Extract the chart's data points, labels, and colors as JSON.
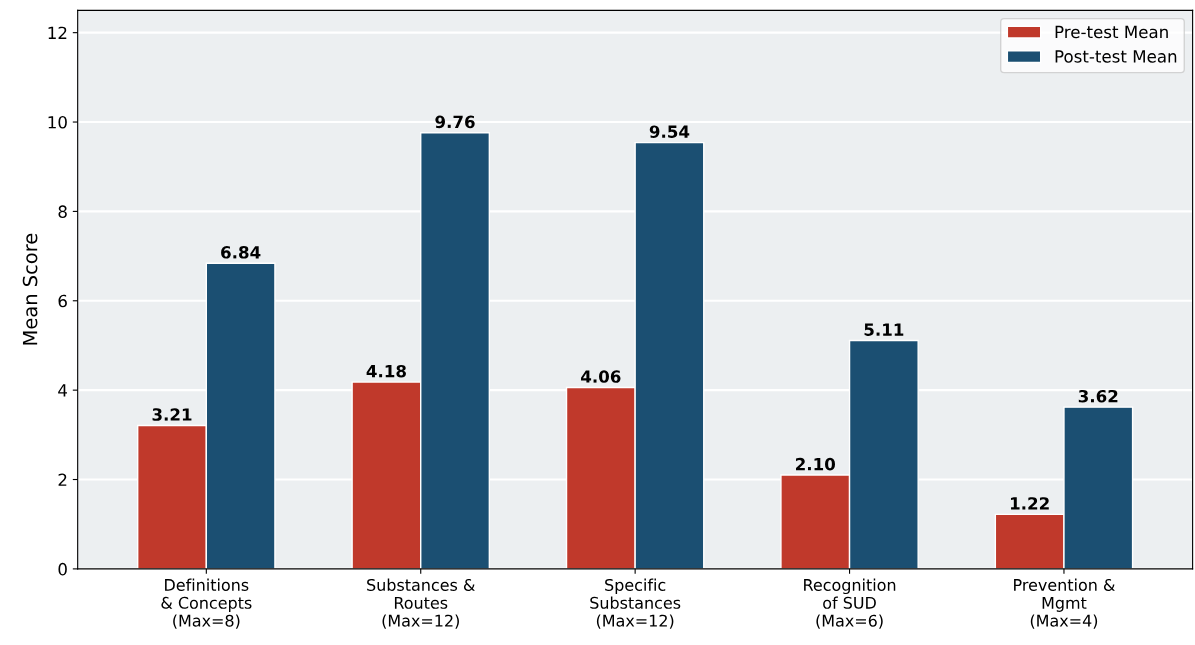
{
  "chart_data": {
    "type": "bar",
    "ylabel": "Mean Score",
    "categories": [
      "Definitions\n& Concepts\n(Max=8)",
      "Substances &\nRoutes\n(Max=12)",
      "Specific\nSubstances\n(Max=12)",
      "Recognition\nof SUD\n(Max=6)",
      "Prevention &\nMgmt\n(Max=4)"
    ],
    "series": [
      {
        "name": "Pre-test Mean",
        "color": "#c0392b",
        "values": [
          3.21,
          4.18,
          4.06,
          2.1,
          1.22
        ],
        "value_labels": [
          "3.21",
          "4.18",
          "4.06",
          "2.10",
          "1.22"
        ]
      },
      {
        "name": "Post-test Mean",
        "color": "#1b4f72",
        "values": [
          6.84,
          9.76,
          9.54,
          5.11,
          3.62
        ],
        "value_labels": [
          "6.84",
          "9.76",
          "9.54",
          "5.11",
          "3.62"
        ]
      }
    ],
    "ylim": [
      0,
      12.5
    ],
    "yticks": [
      0,
      2,
      4,
      6,
      8,
      10,
      12
    ],
    "grid": "y",
    "legend": "top right"
  }
}
